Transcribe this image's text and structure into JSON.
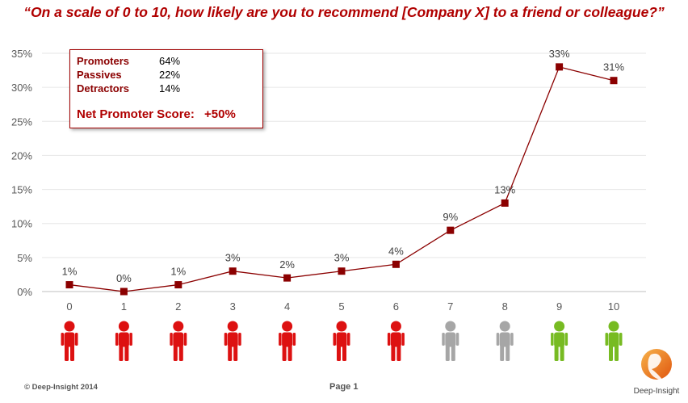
{
  "title": "“On a scale of 0 to 10, how likely are you to recommend [Company X] to a friend or colleague?”",
  "summary": {
    "rows": [
      {
        "label": "Promoters",
        "value": "64%"
      },
      {
        "label": "Passives",
        "value": "22%"
      },
      {
        "label": "Detractors",
        "value": "14%"
      }
    ],
    "nps_label": "Net Promoter Score:",
    "nps_value": "+50%"
  },
  "chart_data": {
    "type": "line",
    "x": [
      0,
      1,
      2,
      3,
      4,
      5,
      6,
      7,
      8,
      9,
      10
    ],
    "categories": [
      "0",
      "1",
      "2",
      "3",
      "4",
      "5",
      "6",
      "7",
      "8",
      "9",
      "10"
    ],
    "values": [
      1,
      0,
      1,
      3,
      2,
      3,
      4,
      9,
      13,
      33,
      31
    ],
    "data_labels": [
      "1%",
      "0%",
      "1%",
      "3%",
      "2%",
      "3%",
      "4%",
      "9%",
      "13%",
      "33%",
      "31%"
    ],
    "y_ticks": [
      "0%",
      "5%",
      "10%",
      "15%",
      "20%",
      "25%",
      "30%",
      "35%"
    ],
    "ylim": [
      0,
      35
    ],
    "grid": true,
    "colors": {
      "line": "#8b0000",
      "marker": "#8b0000"
    }
  },
  "figures": {
    "groups": [
      "detractor",
      "detractor",
      "detractor",
      "detractor",
      "detractor",
      "detractor",
      "detractor",
      "passive",
      "passive",
      "promoter",
      "promoter"
    ],
    "colors": {
      "detractor": "#dd1111",
      "passive": "#a6a6a6",
      "promoter": "#77bb22"
    },
    "icon": "person-icon"
  },
  "footer": {
    "copyright": "© Deep-Insight 2014",
    "page": "Page 1",
    "logo_text": "Deep-Insight"
  }
}
